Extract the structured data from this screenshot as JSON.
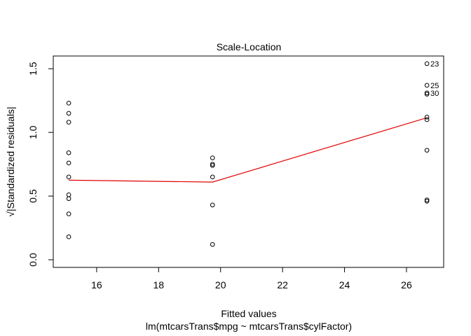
{
  "chart_data": {
    "type": "scatter",
    "title": "Scale-Location",
    "xlabel": "Fitted values",
    "xsublabel": "lm(mtcarsTrans$mpg ~ mtcarsTrans$cylFactor)",
    "ylabel": "√|Standardized residuals|",
    "xlim": [
      14.6,
      27.2
    ],
    "ylim": [
      -0.06,
      1.6
    ],
    "xticks": [
      16,
      18,
      20,
      22,
      24,
      26
    ],
    "yticks": [
      0.0,
      0.5,
      1.0,
      1.5
    ],
    "ytick_labels": [
      "0.0",
      "0.5",
      "1.0",
      "1.5"
    ],
    "grid": false,
    "points": [
      {
        "x": 15.1,
        "y": 1.23
      },
      {
        "x": 15.1,
        "y": 1.15
      },
      {
        "x": 15.1,
        "y": 1.08
      },
      {
        "x": 15.1,
        "y": 0.84
      },
      {
        "x": 15.1,
        "y": 0.76
      },
      {
        "x": 15.1,
        "y": 0.65
      },
      {
        "x": 15.1,
        "y": 0.51
      },
      {
        "x": 15.1,
        "y": 0.48
      },
      {
        "x": 15.1,
        "y": 0.36
      },
      {
        "x": 15.1,
        "y": 0.18
      },
      {
        "x": 19.74,
        "y": 0.8
      },
      {
        "x": 19.74,
        "y": 0.75
      },
      {
        "x": 19.74,
        "y": 0.74
      },
      {
        "x": 19.74,
        "y": 0.65
      },
      {
        "x": 19.74,
        "y": 0.43
      },
      {
        "x": 19.74,
        "y": 0.12
      },
      {
        "x": 26.66,
        "y": 1.54,
        "label": "23"
      },
      {
        "x": 26.66,
        "y": 1.37,
        "label": "25"
      },
      {
        "x": 26.66,
        "y": 1.31,
        "label": "30"
      },
      {
        "x": 26.66,
        "y": 1.3
      },
      {
        "x": 26.66,
        "y": 1.12
      },
      {
        "x": 26.66,
        "y": 1.1
      },
      {
        "x": 26.66,
        "y": 0.86
      },
      {
        "x": 26.66,
        "y": 0.47
      },
      {
        "x": 26.66,
        "y": 0.46
      }
    ],
    "smooth_line": {
      "color": "#e00000",
      "points": [
        {
          "x": 15.1,
          "y": 0.625
        },
        {
          "x": 19.74,
          "y": 0.61
        },
        {
          "x": 26.66,
          "y": 1.115
        }
      ]
    }
  }
}
